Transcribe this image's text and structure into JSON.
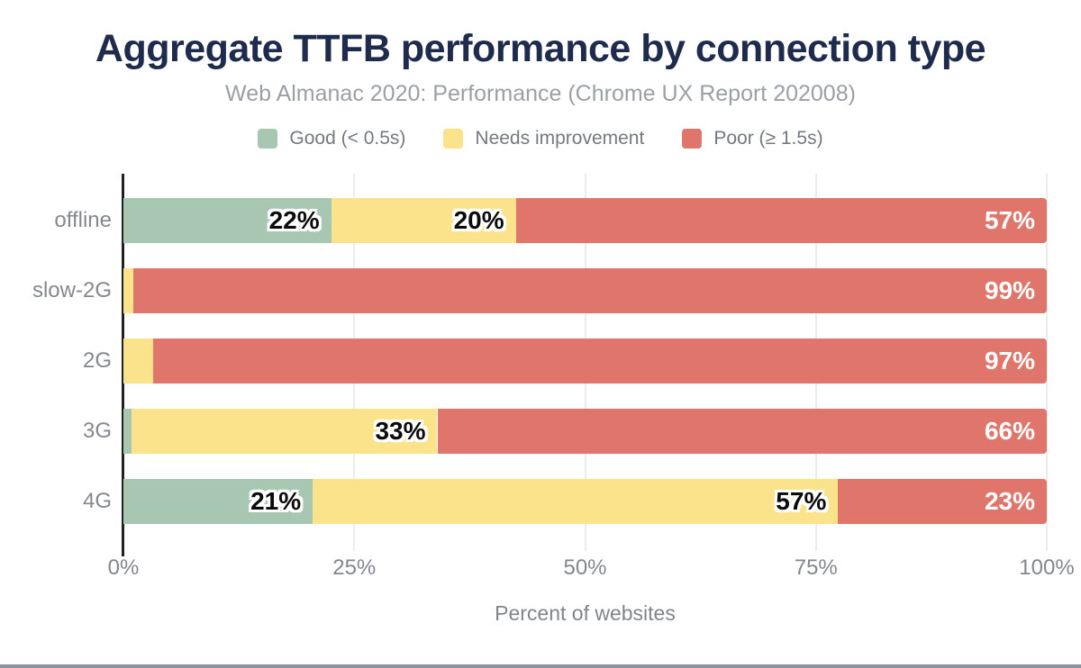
{
  "title": "Aggregate TTFB performance by connection type",
  "subtitle": "Web Almanac 2020: Performance (Chrome UX Report 202008)",
  "legend": [
    {
      "label": "Good (< 0.5s)",
      "color": "#a7c7b2"
    },
    {
      "label": "Needs improvement",
      "color": "#fbe38c"
    },
    {
      "label": "Poor (≥ 1.5s)",
      "color": "#e0756c"
    }
  ],
  "colors": {
    "good": "#a7c7b2",
    "needs_improvement": "#fbe38c",
    "poor": "#e0756c",
    "title": "#1e2b4d",
    "subtitle": "#9aa0a6",
    "axis_line": "#212121",
    "gridline": "#ececec",
    "labels_gray": "#85898f"
  },
  "chart_data": {
    "type": "bar",
    "orientation": "horizontal",
    "stacked": true,
    "title": "Aggregate TTFB performance by connection type",
    "subtitle": "Web Almanac 2020: Performance (Chrome UX Report 202008)",
    "categories": [
      "offline",
      "slow-2G",
      "2G",
      "3G",
      "4G"
    ],
    "series": [
      {
        "name": "Good (< 0.5s)",
        "color": "#a7c7b2",
        "label_style": "dark",
        "values": [
          22,
          0,
          0,
          1,
          21
        ],
        "widths_pct": [
          22.5,
          0,
          0,
          0.9,
          20.5
        ],
        "labels": [
          "22%",
          "",
          "",
          "1%",
          "21%"
        ]
      },
      {
        "name": "Needs improvement",
        "color": "#fbe38c",
        "label_style": "dark",
        "values": [
          20,
          1,
          3,
          33,
          57
        ],
        "widths_pct": [
          20.0,
          1.1,
          3.2,
          33.1,
          56.9
        ],
        "labels": [
          "20%",
          "1%",
          "3%",
          "33%",
          "57%"
        ]
      },
      {
        "name": "Poor (≥ 1.5s)",
        "color": "#e0756c",
        "label_style": "light",
        "values": [
          57,
          99,
          97,
          66,
          23
        ],
        "widths_pct": [
          57.5,
          98.9,
          96.8,
          66.0,
          22.6
        ],
        "labels": [
          "57%",
          "99%",
          "97%",
          "66%",
          "23%"
        ]
      }
    ],
    "xticks": [
      "0%",
      "25%",
      "50%",
      "75%",
      "100%"
    ],
    "xtick_values": [
      0,
      25,
      50,
      75,
      100
    ],
    "xlim": [
      0,
      100
    ],
    "xlabel": "Percent of websites",
    "grid": true,
    "legend_position": "top"
  }
}
